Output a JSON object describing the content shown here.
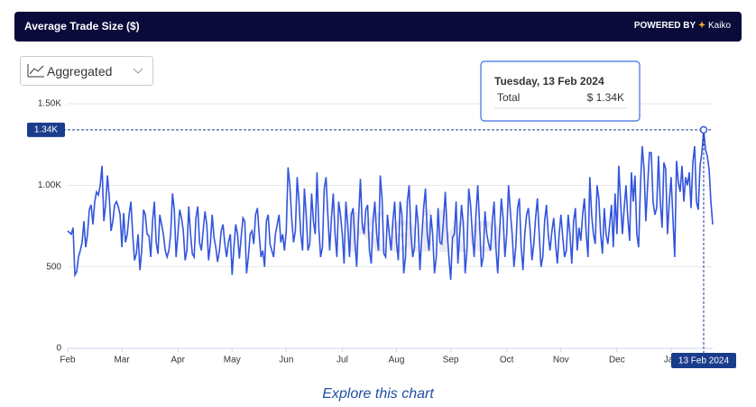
{
  "header": {
    "title": "Average Trade Size ($)",
    "powered_by": "POWERED BY",
    "brand": "Kaiko"
  },
  "dropdown": {
    "label": "Aggregated"
  },
  "chart_data": {
    "type": "line",
    "color": "#3355dd",
    "watermark": "Kaiko",
    "values": [
      720,
      710,
      700,
      740,
      450,
      470,
      560,
      600,
      650,
      780,
      620,
      700,
      850,
      880,
      760,
      900,
      960,
      940,
      1000,
      1120,
      780,
      880,
      1060,
      930,
      720,
      780,
      880,
      900,
      870,
      820,
      620,
      830,
      650,
      700,
      820,
      900,
      700,
      540,
      580,
      700,
      480,
      600,
      850,
      820,
      700,
      690,
      560,
      780,
      900,
      650,
      580,
      820,
      760,
      700,
      600,
      560,
      600,
      700,
      950,
      850,
      560,
      700,
      850,
      800,
      720,
      540,
      600,
      870,
      700,
      580,
      560,
      800,
      870,
      650,
      600,
      720,
      840,
      760,
      540,
      640,
      820,
      680,
      620,
      530,
      600,
      720,
      760,
      640,
      560,
      650,
      700,
      450,
      620,
      760,
      700,
      550,
      680,
      800,
      780,
      460,
      560,
      700,
      720,
      640,
      820,
      860,
      700,
      560,
      600,
      500,
      780,
      820,
      640,
      600,
      560,
      700,
      760,
      820,
      650,
      700,
      600,
      720,
      1110,
      1000,
      800,
      650,
      720,
      1050,
      900,
      700,
      600,
      980,
      820,
      600,
      640,
      950,
      780,
      700,
      1080,
      740,
      560,
      620,
      980,
      1050,
      820,
      600,
      800,
      950,
      700,
      560,
      900,
      820,
      700,
      520,
      900,
      760,
      560,
      820,
      860,
      650,
      500,
      800,
      1040,
      760,
      700,
      850,
      880,
      600,
      520,
      780,
      900,
      700,
      600,
      1060,
      920,
      580,
      560,
      820,
      700,
      600,
      780,
      900,
      650,
      540,
      900,
      820,
      460,
      560,
      900,
      1000,
      700,
      560,
      620,
      880,
      760,
      480,
      680,
      860,
      980,
      700,
      600,
      820,
      700,
      460,
      560,
      860,
      650,
      640,
      780,
      960,
      720,
      560,
      420,
      680,
      700,
      900,
      520,
      700,
      880,
      760,
      460,
      600,
      980,
      880,
      700,
      560,
      820,
      1000,
      760,
      500,
      560,
      840,
      700,
      640,
      600,
      780,
      900,
      620,
      460,
      700,
      920,
      800,
      560,
      700,
      1000,
      840,
      700,
      500,
      620,
      860,
      920,
      620,
      480,
      700,
      820,
      860,
      720,
      540,
      640,
      800,
      920,
      700,
      500,
      560,
      780,
      880,
      700,
      600,
      720,
      800,
      640,
      520,
      700,
      820,
      680,
      560,
      600,
      820,
      700,
      520,
      780,
      860,
      600,
      740,
      660,
      820,
      920,
      700,
      560,
      1050,
      820,
      700,
      640,
      1000,
      920,
      700,
      580,
      860,
      700,
      640,
      760,
      880,
      620,
      950,
      700,
      1120,
      900,
      700,
      860,
      1000,
      800,
      660,
      1080,
      900,
      1060,
      700,
      620,
      1000,
      1240,
      1100,
      780,
      1000,
      1200,
      1200,
      900,
      820,
      860,
      1180,
      900,
      740,
      1140,
      1100,
      700,
      900,
      1050,
      800,
      560,
      1150,
      1020,
      960,
      1120,
      900,
      1050,
      1000,
      1080,
      860,
      1140,
      1240,
      900,
      850,
      1120,
      1200,
      1340,
      1220,
      1180,
      1100,
      900,
      760
    ],
    "xlim": [
      0,
      357
    ],
    "xticks": [
      {
        "value": 0,
        "label": "Feb"
      },
      {
        "value": 30,
        "label": "Mar"
      },
      {
        "value": 61,
        "label": "Apr"
      },
      {
        "value": 91,
        "label": "May"
      },
      {
        "value": 121,
        "label": "Jun"
      },
      {
        "value": 152,
        "label": "Jul"
      },
      {
        "value": 182,
        "label": "Aug"
      },
      {
        "value": 212,
        "label": "Sep"
      },
      {
        "value": 243,
        "label": "Oct"
      },
      {
        "value": 273,
        "label": "Nov"
      },
      {
        "value": 304,
        "label": "Dec"
      },
      {
        "value": 334,
        "label": "Jan"
      }
    ],
    "ylim": [
      0,
      1500
    ],
    "yticks": [
      0,
      500,
      {
        "value": 1000,
        "label": "1.00K"
      },
      {
        "value": 1500,
        "label": "1.50K"
      }
    ],
    "grid": true,
    "tooltip": {
      "date": "Tuesday, 13 Feb 2024",
      "series_label": "Total",
      "value": 1340,
      "value_label": "$ 1.34K",
      "y_label": "1.34K",
      "x_label": "13 Feb 2024"
    }
  },
  "footer": {
    "link": "Explore this chart"
  }
}
